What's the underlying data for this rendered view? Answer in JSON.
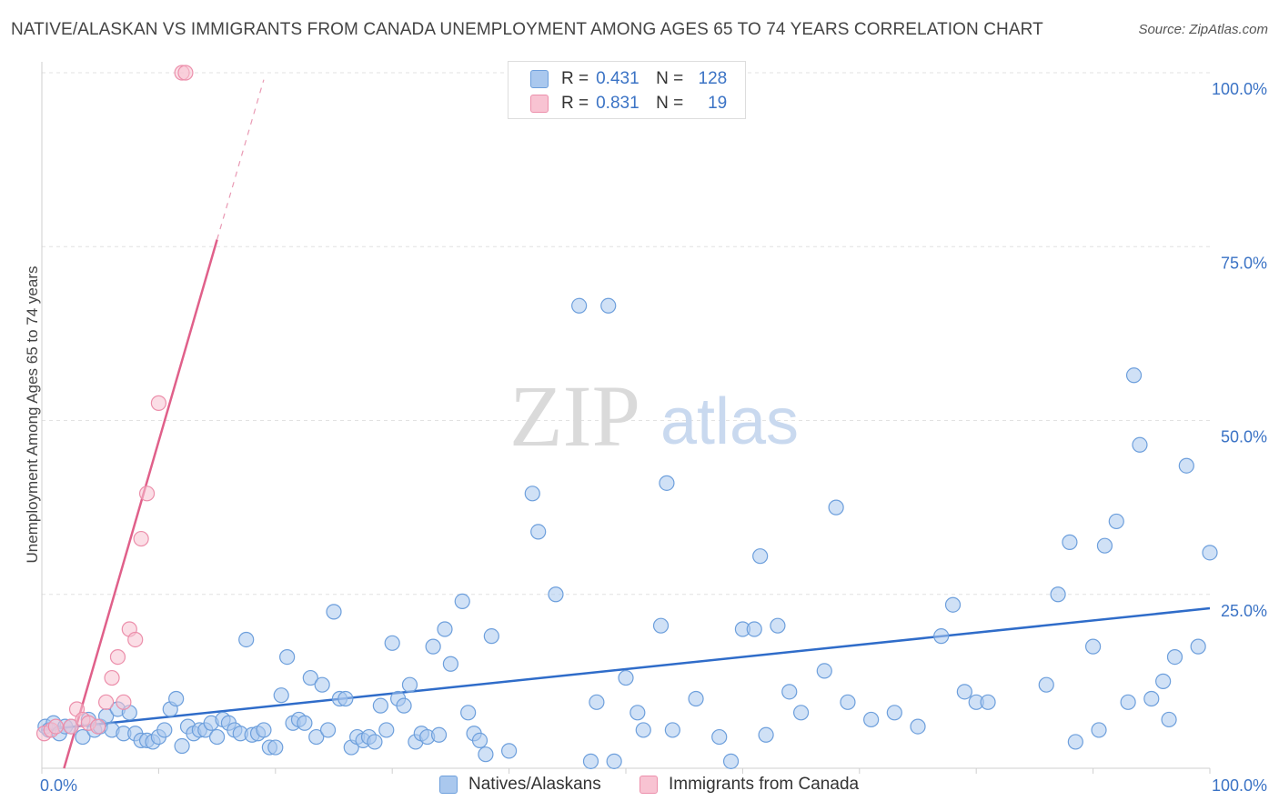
{
  "title": "NATIVE/ALASKAN VS IMMIGRANTS FROM CANADA UNEMPLOYMENT AMONG AGES 65 TO 74 YEARS CORRELATION CHART",
  "source": "Source: ZipAtlas.com",
  "watermark": {
    "zip": "ZIP",
    "atlas": "atlas"
  },
  "legend": {
    "rows": [
      {
        "r_label": "R =",
        "r_value": "0.431",
        "n_label": "N =",
        "n_value": "128",
        "color": "#aac8ee",
        "border": "#6d9fdc"
      },
      {
        "r_label": "R =",
        "r_value": "0.831",
        "n_label": "N =",
        "n_value": "19",
        "color": "#f8c3d2",
        "border": "#ec8fab"
      }
    ]
  },
  "bottom_legend": {
    "natives": "Natives/Alaskans",
    "canada": "Immigrants from Canada"
  },
  "chart_data": {
    "type": "scatter",
    "title": "NATIVE/ALASKAN VS IMMIGRANTS FROM CANADA UNEMPLOYMENT AMONG AGES 65 TO 74 YEARS CORRELATION CHART",
    "xlabel": "",
    "ylabel": "Unemployment Among Ages 65 to 74 years",
    "xlim": [
      0,
      100
    ],
    "ylim": [
      0,
      100
    ],
    "x_tick_labels": [
      "0.0%",
      "100.0%"
    ],
    "y_tick_labels": [
      "100.0%",
      "75.0%",
      "50.0%",
      "25.0%"
    ],
    "y_ticks": [
      100,
      75,
      50,
      25
    ],
    "grid": true,
    "series": [
      {
        "name": "Natives/Alaskans",
        "color": "#6d9fdc",
        "fill": "#aac8ee",
        "trend": {
          "x0": 0,
          "y0": 5.5,
          "x1": 100,
          "y1": 23
        },
        "points": [
          [
            0.3,
            6
          ],
          [
            0.6,
            5.5
          ],
          [
            1,
            6.5
          ],
          [
            1.5,
            5
          ],
          [
            2,
            6
          ],
          [
            2.5,
            6
          ],
          [
            3.5,
            4.5
          ],
          [
            4,
            7
          ],
          [
            4.5,
            5.5
          ],
          [
            5,
            6
          ],
          [
            5.5,
            7.5
          ],
          [
            6,
            5.5
          ],
          [
            6.5,
            8.5
          ],
          [
            7,
            5
          ],
          [
            7.5,
            8
          ],
          [
            8,
            5
          ],
          [
            8.5,
            4
          ],
          [
            9,
            4
          ],
          [
            9.5,
            3.8
          ],
          [
            10,
            4.5
          ],
          [
            10.5,
            5.5
          ],
          [
            11,
            8.5
          ],
          [
            11.5,
            10
          ],
          [
            12,
            3.2
          ],
          [
            12.5,
            6
          ],
          [
            13,
            5
          ],
          [
            13.5,
            5.5
          ],
          [
            14,
            5.5
          ],
          [
            14.5,
            6.5
          ],
          [
            15,
            4.5
          ],
          [
            15.5,
            7
          ],
          [
            16,
            6.5
          ],
          [
            16.5,
            5.5
          ],
          [
            17,
            5
          ],
          [
            17.5,
            18.5
          ],
          [
            18,
            4.8
          ],
          [
            18.5,
            5
          ],
          [
            19,
            5.5
          ],
          [
            19.5,
            3
          ],
          [
            20,
            3
          ],
          [
            20.5,
            10.5
          ],
          [
            21,
            16
          ],
          [
            21.5,
            6.5
          ],
          [
            22,
            7
          ],
          [
            22.5,
            6.5
          ],
          [
            23,
            13
          ],
          [
            23.5,
            4.5
          ],
          [
            24,
            12
          ],
          [
            24.5,
            5.5
          ],
          [
            25,
            22.5
          ],
          [
            25.5,
            10
          ],
          [
            26,
            10
          ],
          [
            26.5,
            3
          ],
          [
            27,
            4.5
          ],
          [
            27.5,
            4
          ],
          [
            28,
            4.5
          ],
          [
            28.5,
            3.8
          ],
          [
            29,
            9
          ],
          [
            29.5,
            5.5
          ],
          [
            30,
            18
          ],
          [
            30.5,
            10
          ],
          [
            31,
            9
          ],
          [
            31.5,
            12
          ],
          [
            32,
            3.8
          ],
          [
            32.5,
            5
          ],
          [
            33,
            4.5
          ],
          [
            33.5,
            17.5
          ],
          [
            34,
            4.8
          ],
          [
            34.5,
            20
          ],
          [
            35,
            15
          ],
          [
            36,
            24
          ],
          [
            36.5,
            8
          ],
          [
            37,
            5
          ],
          [
            37.5,
            4
          ],
          [
            38,
            2
          ],
          [
            38.5,
            19
          ],
          [
            40,
            2.5
          ],
          [
            42,
            39.5
          ],
          [
            42.5,
            34
          ],
          [
            44,
            25
          ],
          [
            46,
            66.5
          ],
          [
            47,
            1
          ],
          [
            47.5,
            9.5
          ],
          [
            48.5,
            66.5
          ],
          [
            49,
            1
          ],
          [
            50,
            13
          ],
          [
            51,
            8
          ],
          [
            51.5,
            5.5
          ],
          [
            53,
            20.5
          ],
          [
            53.5,
            41
          ],
          [
            54,
            5.5
          ],
          [
            56,
            10
          ],
          [
            58,
            4.5
          ],
          [
            59,
            1
          ],
          [
            60,
            20
          ],
          [
            61,
            20
          ],
          [
            61.5,
            30.5
          ],
          [
            62,
            4.8
          ],
          [
            63,
            20.5
          ],
          [
            64,
            11
          ],
          [
            65,
            8
          ],
          [
            67,
            14
          ],
          [
            68,
            37.5
          ],
          [
            69,
            9.5
          ],
          [
            71,
            7
          ],
          [
            73,
            8
          ],
          [
            75,
            6
          ],
          [
            77,
            19
          ],
          [
            78,
            23.5
          ],
          [
            79,
            11
          ],
          [
            80,
            9.5
          ],
          [
            81,
            9.5
          ],
          [
            86,
            12
          ],
          [
            87,
            25
          ],
          [
            88,
            32.5
          ],
          [
            88.5,
            3.8
          ],
          [
            90,
            17.5
          ],
          [
            90.5,
            5.5
          ],
          [
            91,
            32
          ],
          [
            92,
            35.5
          ],
          [
            93,
            9.5
          ],
          [
            93.5,
            56.5
          ],
          [
            94,
            46.5
          ],
          [
            95,
            10
          ],
          [
            96,
            12.5
          ],
          [
            96.5,
            7
          ],
          [
            97,
            16
          ],
          [
            98,
            43.5
          ],
          [
            99,
            17.5
          ],
          [
            100,
            31
          ]
        ]
      },
      {
        "name": "Immigrants from Canada",
        "color": "#ec8fab",
        "fill": "#f8c3d2",
        "trend": {
          "x0": 1.9,
          "y0": 0,
          "x1": 15,
          "y1": 76
        },
        "trend_dashed": {
          "x0": 15,
          "y0": 76,
          "x1": 19,
          "y1": 99
        },
        "points": [
          [
            0.2,
            5
          ],
          [
            0.8,
            5.5
          ],
          [
            1.2,
            6
          ],
          [
            2.5,
            6
          ],
          [
            3,
            8.5
          ],
          [
            3.5,
            7
          ],
          [
            4,
            6.5
          ],
          [
            4.8,
            6
          ],
          [
            5.5,
            9.5
          ],
          [
            6,
            13
          ],
          [
            6.5,
            16
          ],
          [
            7,
            9.5
          ],
          [
            7.5,
            20
          ],
          [
            8,
            18.5
          ],
          [
            8.5,
            33
          ],
          [
            9,
            39.5
          ],
          [
            10,
            52.5
          ],
          [
            12,
            100
          ],
          [
            12.3,
            100
          ]
        ]
      }
    ]
  }
}
